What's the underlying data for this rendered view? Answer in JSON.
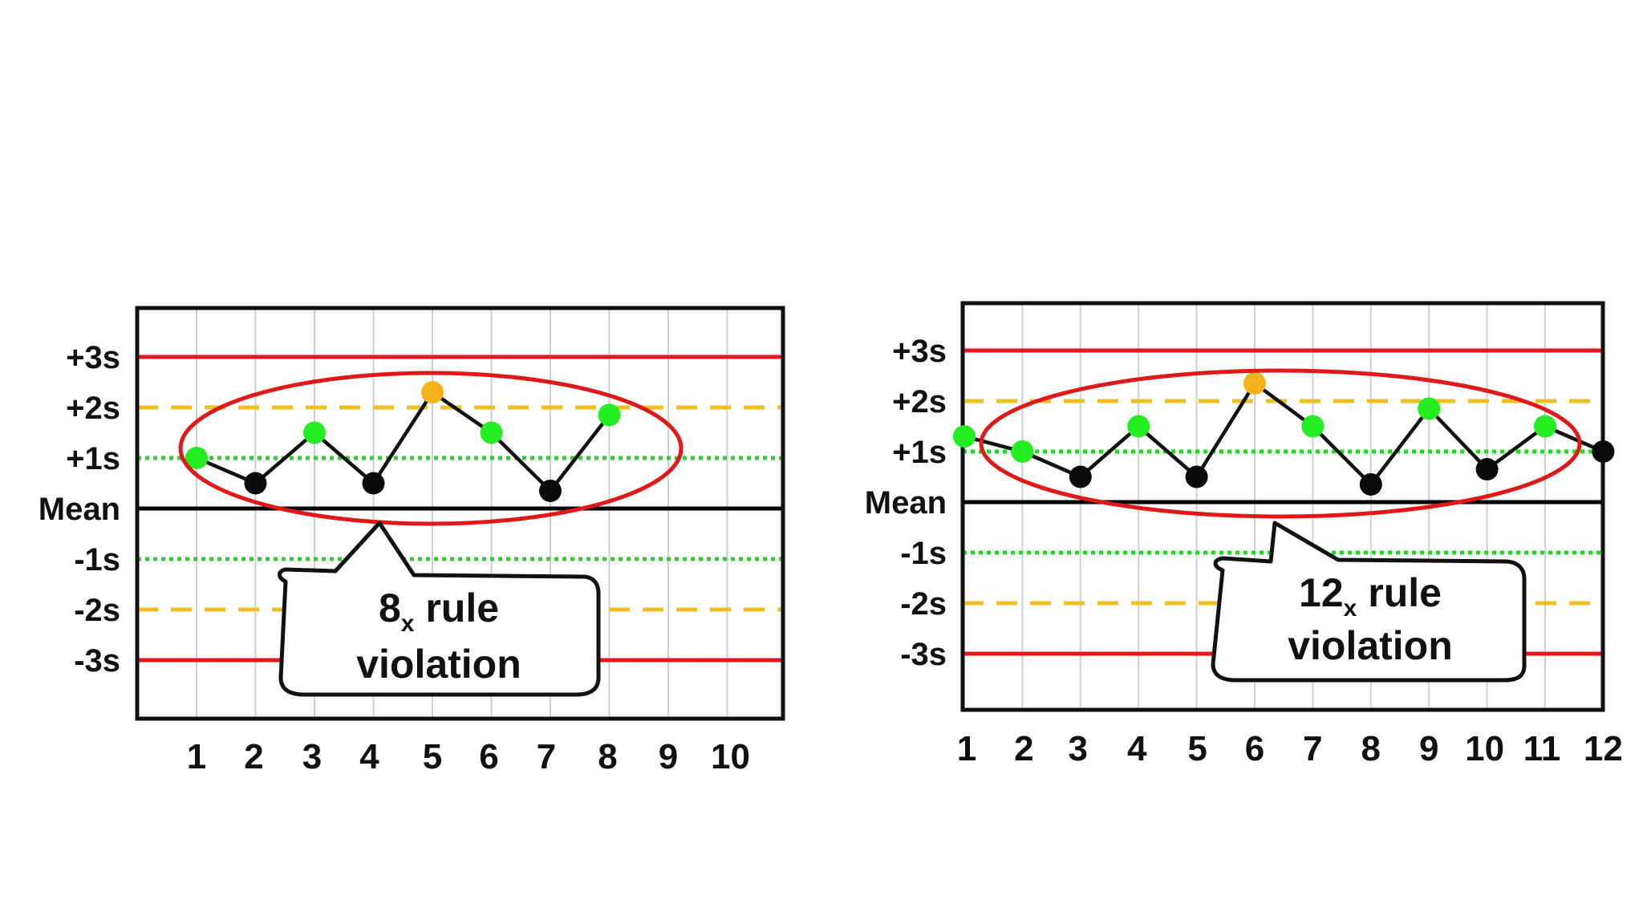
{
  "chart_data": [
    {
      "type": "line",
      "x": [
        1,
        2,
        3,
        4,
        5,
        6,
        7,
        8
      ],
      "x_ticks": [
        "1",
        "2",
        "3",
        "4",
        "5",
        "6",
        "7",
        "8",
        "9",
        "10"
      ],
      "xlim": [
        1,
        10
      ],
      "y_levels": [
        "+3s",
        "+2s",
        "+1s",
        "Mean",
        "-1s",
        "-2s",
        "-3s"
      ],
      "ylim": [
        -3,
        3
      ],
      "series": [
        {
          "values": [
            1.0,
            0.5,
            1.5,
            0.5,
            2.3,
            1.5,
            0.35,
            1.85
          ]
        }
      ],
      "point_colors": [
        "green",
        "black",
        "green",
        "black",
        "orange",
        "green",
        "black",
        "green"
      ],
      "callout": {
        "number": "8",
        "subscript": "x",
        "line1_rest": " rule",
        "line2": "violation"
      },
      "grid": true
    },
    {
      "type": "line",
      "x": [
        1,
        2,
        3,
        4,
        5,
        6,
        7,
        8,
        9,
        10,
        11,
        12
      ],
      "x_ticks": [
        "1",
        "2",
        "3",
        "4",
        "5",
        "6",
        "7",
        "8",
        "9",
        "10",
        "11",
        "12"
      ],
      "xlim": [
        1,
        12
      ],
      "y_levels": [
        "+3s",
        "+2s",
        "+1s",
        "Mean",
        "-1s",
        "-2s",
        "-3s"
      ],
      "ylim": [
        -3,
        3
      ],
      "series": [
        {
          "values": [
            1.3,
            1.0,
            0.5,
            1.5,
            0.5,
            2.35,
            1.5,
            0.35,
            1.85,
            0.65,
            1.5,
            1.0
          ]
        }
      ],
      "point_colors": [
        "green",
        "green",
        "black",
        "green",
        "black",
        "orange",
        "green",
        "black",
        "green",
        "black",
        "green",
        "black"
      ],
      "callout": {
        "number": "12",
        "subscript": "x",
        "line1_rest": " rule",
        "line2": "violation"
      },
      "grid": true
    }
  ],
  "colors": {
    "limit3s": "#e8171b",
    "limit2s": "#f0c020",
    "limit1s": "#2bd42b",
    "mean": "#000000",
    "point_green": "#22ee22",
    "point_black": "#0a0a0a",
    "point_orange": "#f5b21a",
    "grid": "#c9d3d3",
    "ellipse": "#e01818"
  }
}
